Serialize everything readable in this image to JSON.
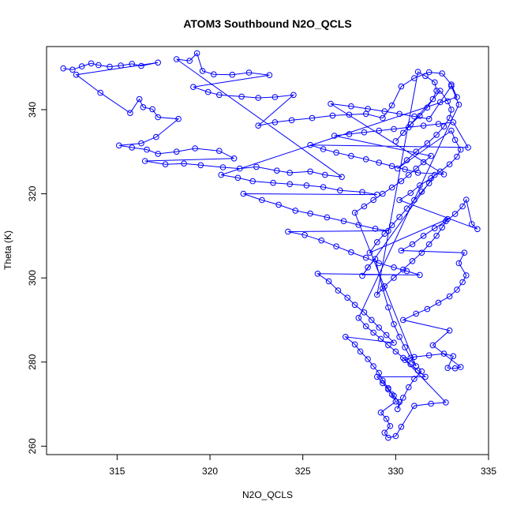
{
  "chart_data": {
    "type": "scatter",
    "title": "ATOM3 Southbound N2O_QCLS",
    "xlabel": "N2O_QCLS",
    "ylabel": "Theta (K)",
    "xlim": [
      311.2,
      335.0
    ],
    "ylim": [
      258.0,
      355.0
    ],
    "x_ticks": [
      315,
      320,
      325,
      330,
      335
    ],
    "y_ticks": [
      260,
      280,
      300,
      320,
      340
    ],
    "marker": "open-circle",
    "connected": true,
    "color": "#0000ff",
    "grid": false,
    "legend": "none",
    "series": [
      {
        "values_note": "dense profile of N2O vs theta; points listed as [x, y]",
        "points": [
          [
            312.1,
            349.8
          ],
          [
            312.6,
            349.5
          ],
          [
            313.1,
            350.3
          ],
          [
            313.6,
            351.0
          ],
          [
            314.0,
            350.6
          ],
          [
            314.6,
            350.2
          ],
          [
            315.2,
            350.5
          ],
          [
            315.8,
            350.9
          ],
          [
            316.3,
            350.4
          ],
          [
            317.2,
            351.2
          ],
          [
            312.8,
            348.3
          ],
          [
            314.1,
            344.0
          ],
          [
            315.7,
            339.2
          ],
          [
            316.2,
            342.5
          ],
          [
            316.4,
            340.6
          ],
          [
            316.9,
            340.1
          ],
          [
            317.2,
            338.2
          ],
          [
            318.3,
            337.8
          ],
          [
            317.1,
            333.5
          ],
          [
            316.3,
            332.0
          ],
          [
            315.1,
            331.5
          ],
          [
            315.8,
            331.0
          ],
          [
            316.6,
            330.5
          ],
          [
            317.2,
            329.5
          ],
          [
            318.2,
            330.0
          ],
          [
            319.2,
            330.8
          ],
          [
            320.5,
            330.2
          ],
          [
            321.3,
            328.4
          ],
          [
            316.5,
            327.8
          ],
          [
            317.6,
            327.0
          ],
          [
            318.6,
            327.2
          ],
          [
            319.5,
            326.8
          ],
          [
            320.7,
            326.3
          ],
          [
            321.6,
            326.0
          ],
          [
            322.5,
            326.4
          ],
          [
            323.6,
            325.5
          ],
          [
            324.3,
            325.0
          ],
          [
            325.4,
            325.3
          ],
          [
            326.2,
            324.5
          ],
          [
            327.1,
            324.0
          ],
          [
            318.2,
            352.0
          ],
          [
            318.9,
            351.6
          ],
          [
            319.3,
            353.4
          ],
          [
            319.6,
            349.2
          ],
          [
            320.2,
            348.4
          ],
          [
            321.2,
            348.3
          ],
          [
            322.1,
            348.8
          ],
          [
            323.2,
            348.2
          ],
          [
            319.1,
            345.4
          ],
          [
            319.9,
            344.2
          ],
          [
            320.5,
            343.5
          ],
          [
            321.7,
            343.1
          ],
          [
            322.6,
            342.8
          ],
          [
            323.5,
            343.0
          ],
          [
            324.5,
            343.5
          ],
          [
            322.6,
            336.2
          ],
          [
            323.5,
            337.0
          ],
          [
            324.4,
            337.5
          ],
          [
            325.5,
            338.0
          ],
          [
            326.6,
            338.6
          ],
          [
            327.5,
            338.8
          ],
          [
            328.4,
            339.0
          ],
          [
            329.3,
            338.0
          ],
          [
            329.8,
            341.0
          ],
          [
            330.3,
            345.5
          ],
          [
            331.0,
            347.5
          ],
          [
            331.8,
            348.9
          ],
          [
            332.5,
            348.6
          ],
          [
            333.0,
            346.0
          ],
          [
            333.3,
            343.0
          ],
          [
            320.6,
            324.5
          ],
          [
            321.5,
            323.8
          ],
          [
            322.3,
            323.0
          ],
          [
            323.4,
            322.6
          ],
          [
            324.3,
            322.3
          ],
          [
            325.2,
            322.0
          ],
          [
            326.1,
            321.6
          ],
          [
            327.0,
            320.8
          ],
          [
            328.2,
            320.4
          ],
          [
            329.0,
            319.8
          ],
          [
            321.8,
            320.0
          ],
          [
            322.8,
            318.5
          ],
          [
            323.7,
            317.4
          ],
          [
            324.6,
            316.0
          ],
          [
            325.4,
            315.3
          ],
          [
            326.3,
            314.4
          ],
          [
            327.2,
            313.5
          ],
          [
            328.0,
            312.6
          ],
          [
            328.9,
            311.7
          ],
          [
            329.6,
            311.2
          ],
          [
            324.2,
            311.0
          ],
          [
            325.1,
            310.2
          ],
          [
            326.0,
            308.9
          ],
          [
            326.8,
            307.5
          ],
          [
            327.6,
            306.1
          ],
          [
            328.4,
            304.8
          ],
          [
            329.1,
            303.5
          ],
          [
            329.9,
            302.5
          ],
          [
            330.6,
            301.6
          ],
          [
            331.3,
            300.7
          ],
          [
            325.8,
            301.0
          ],
          [
            326.4,
            299.2
          ],
          [
            326.9,
            297.0
          ],
          [
            327.4,
            295.3
          ],
          [
            327.8,
            293.6
          ],
          [
            328.3,
            291.8
          ],
          [
            328.7,
            290.0
          ],
          [
            329.1,
            288.2
          ],
          [
            329.5,
            286.4
          ],
          [
            329.9,
            284.6
          ],
          [
            327.3,
            286.0
          ],
          [
            327.8,
            284.2
          ],
          [
            328.1,
            282.5
          ],
          [
            328.5,
            280.7
          ],
          [
            328.8,
            279.0
          ],
          [
            329.1,
            277.4
          ],
          [
            329.3,
            275.6
          ],
          [
            329.6,
            273.8
          ],
          [
            329.8,
            272.3
          ],
          [
            330.0,
            270.6
          ],
          [
            329.2,
            268.0
          ],
          [
            329.5,
            266.5
          ],
          [
            329.7,
            264.8
          ],
          [
            329.4,
            263.2
          ],
          [
            329.6,
            262.0
          ],
          [
            330.0,
            262.4
          ],
          [
            330.3,
            264.6
          ],
          [
            331.0,
            269.6
          ],
          [
            331.9,
            270.1
          ],
          [
            332.7,
            270.4
          ],
          [
            330.5,
            280.5
          ],
          [
            331.0,
            281.2
          ],
          [
            331.8,
            281.6
          ],
          [
            332.6,
            282.0
          ],
          [
            333.1,
            281.4
          ],
          [
            332.8,
            278.6
          ],
          [
            333.2,
            278.5
          ],
          [
            333.5,
            278.8
          ],
          [
            332.0,
            284.0
          ],
          [
            332.9,
            287.5
          ],
          [
            330.4,
            290.0
          ],
          [
            331.1,
            291.5
          ],
          [
            331.7,
            292.6
          ],
          [
            332.3,
            294.1
          ],
          [
            332.9,
            295.6
          ],
          [
            333.3,
            297.2
          ],
          [
            333.6,
            299.0
          ],
          [
            333.8,
            300.6
          ],
          [
            333.4,
            303.5
          ],
          [
            333.7,
            306.0
          ],
          [
            330.3,
            306.5
          ],
          [
            330.9,
            308.0
          ],
          [
            331.5,
            310.0
          ],
          [
            332.1,
            311.8
          ],
          [
            332.7,
            313.5
          ],
          [
            333.2,
            315.2
          ],
          [
            333.6,
            317.0
          ],
          [
            333.8,
            318.6
          ],
          [
            334.1,
            312.8
          ],
          [
            334.4,
            311.6
          ],
          [
            330.2,
            318.5
          ],
          [
            330.8,
            320.2
          ],
          [
            331.3,
            322.0
          ],
          [
            331.9,
            323.7
          ],
          [
            332.4,
            325.3
          ],
          [
            332.9,
            327.0
          ],
          [
            333.3,
            328.8
          ],
          [
            333.5,
            330.5
          ],
          [
            333.2,
            332.8
          ],
          [
            333.0,
            335.0
          ],
          [
            330.1,
            326.0
          ],
          [
            330.6,
            328.0
          ],
          [
            331.1,
            330.0
          ],
          [
            331.7,
            332.0
          ],
          [
            332.2,
            334.0
          ],
          [
            332.6,
            336.0
          ],
          [
            332.9,
            338.0
          ],
          [
            333.0,
            340.0
          ],
          [
            332.8,
            342.0
          ],
          [
            332.4,
            344.5
          ],
          [
            330.0,
            332.5
          ],
          [
            330.4,
            334.5
          ],
          [
            330.8,
            336.5
          ],
          [
            331.3,
            338.5
          ],
          [
            331.7,
            340.5
          ],
          [
            332.0,
            342.5
          ],
          [
            332.2,
            344.5
          ],
          [
            332.1,
            346.5
          ],
          [
            331.6,
            348.0
          ],
          [
            331.2,
            349.0
          ],
          [
            329.0,
            296.0
          ],
          [
            329.4,
            298.0
          ],
          [
            329.9,
            300.0
          ],
          [
            330.4,
            302.0
          ],
          [
            330.9,
            304.0
          ],
          [
            331.4,
            306.0
          ],
          [
            331.8,
            308.0
          ],
          [
            332.2,
            310.0
          ],
          [
            332.5,
            312.0
          ],
          [
            332.8,
            314.0
          ],
          [
            328.6,
            306.0
          ],
          [
            329.0,
            308.5
          ],
          [
            329.4,
            310.5
          ],
          [
            329.8,
            312.5
          ],
          [
            330.2,
            314.5
          ],
          [
            330.6,
            316.5
          ],
          [
            331.0,
            318.5
          ],
          [
            331.4,
            320.5
          ],
          [
            331.8,
            322.5
          ],
          [
            332.1,
            324.5
          ],
          [
            328.2,
            300.5
          ],
          [
            328.5,
            302.5
          ],
          [
            328.9,
            304.5
          ],
          [
            329.3,
            297.5
          ],
          [
            329.6,
            293.0
          ],
          [
            329.9,
            289.0
          ],
          [
            330.2,
            286.0
          ],
          [
            330.5,
            283.5
          ],
          [
            330.8,
            281.0
          ],
          [
            331.1,
            279.0
          ],
          [
            327.8,
            315.5
          ],
          [
            328.3,
            317.0
          ],
          [
            328.8,
            318.5
          ],
          [
            329.3,
            320.0
          ],
          [
            329.8,
            321.5
          ],
          [
            330.3,
            323.0
          ],
          [
            330.7,
            324.5
          ],
          [
            331.1,
            326.0
          ],
          [
            331.5,
            327.5
          ],
          [
            331.9,
            329.0
          ],
          [
            326.7,
            333.8
          ],
          [
            327.5,
            334.2
          ],
          [
            328.3,
            334.6
          ],
          [
            329.1,
            335.0
          ],
          [
            329.9,
            335.4
          ],
          [
            330.7,
            335.8
          ],
          [
            331.5,
            336.2
          ],
          [
            332.3,
            336.6
          ],
          [
            333.1,
            337.0
          ],
          [
            333.9,
            331.0
          ],
          [
            325.4,
            331.6
          ],
          [
            326.1,
            330.6
          ],
          [
            326.8,
            329.8
          ],
          [
            327.6,
            329.0
          ],
          [
            328.4,
            328.2
          ],
          [
            329.1,
            327.4
          ],
          [
            329.8,
            326.6
          ],
          [
            330.5,
            325.8
          ],
          [
            331.2,
            325.0
          ],
          [
            332.6,
            324.6
          ],
          [
            326.5,
            341.4
          ],
          [
            327.6,
            340.8
          ],
          [
            328.5,
            340.2
          ],
          [
            329.4,
            339.6
          ],
          [
            330.2,
            339.0
          ],
          [
            331.0,
            338.4
          ],
          [
            331.8,
            337.8
          ],
          [
            332.4,
            341.8
          ],
          [
            333.0,
            345.6
          ],
          [
            333.4,
            341.2
          ],
          [
            328.0,
            290.5
          ],
          [
            328.4,
            288.5
          ],
          [
            328.8,
            287.0
          ],
          [
            329.2,
            285.5
          ],
          [
            329.6,
            284.0
          ],
          [
            330.0,
            282.5
          ],
          [
            330.4,
            281.0
          ],
          [
            330.8,
            279.5
          ],
          [
            331.2,
            278.0
          ],
          [
            331.6,
            276.5
          ],
          [
            329.0,
            276.5
          ],
          [
            329.3,
            275.0
          ],
          [
            329.6,
            273.5
          ],
          [
            329.9,
            272.0
          ],
          [
            330.2,
            270.5
          ],
          [
            330.1,
            268.8
          ],
          [
            330.4,
            271.5
          ],
          [
            330.7,
            274.0
          ],
          [
            331.0,
            276.0
          ],
          [
            331.4,
            277.8
          ]
        ]
      }
    ]
  }
}
